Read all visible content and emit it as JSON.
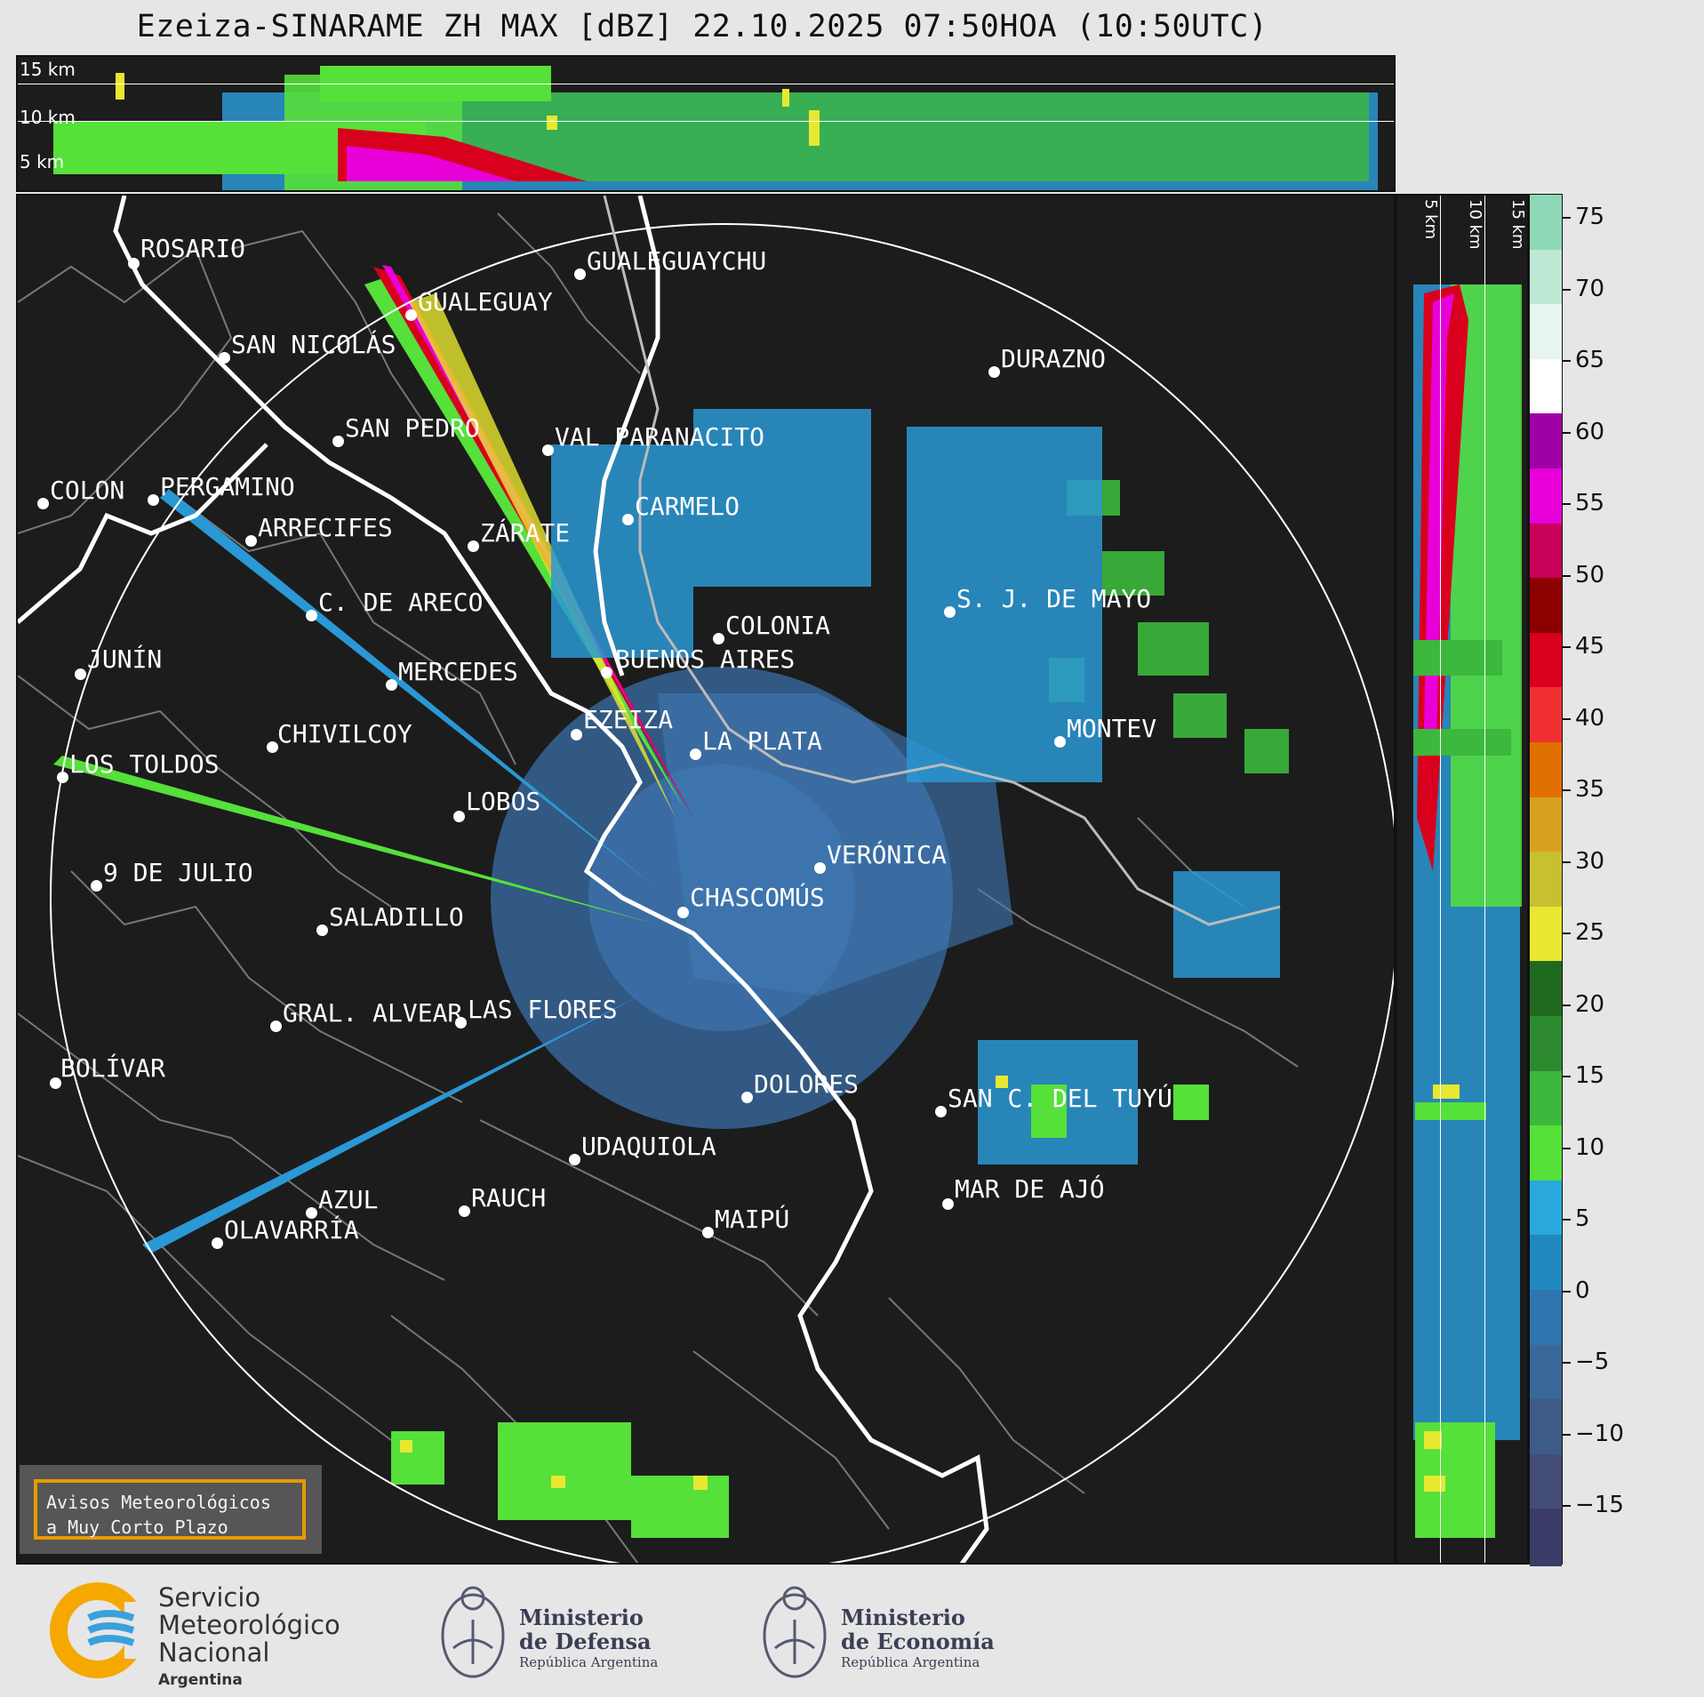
{
  "title": "Ezeiza-SINARAME ZH MAX [dBZ] 22.10.2025 07:50HOA (10:50UTC)",
  "top_panel": {
    "altitude_labels": [
      "15 km",
      "10 km",
      "5 km"
    ]
  },
  "side_panel": {
    "altitude_labels": [
      "5 km",
      "10 km",
      "15 km"
    ]
  },
  "colorbar": {
    "unit": "dBZ",
    "ticks": [
      "75",
      "70",
      "65",
      "60",
      "55",
      "50",
      "45",
      "40",
      "35",
      "30",
      "25",
      "20",
      "15",
      "10",
      "5",
      "0",
      "−5",
      "−10",
      "−15"
    ],
    "colors": [
      "#8ed8b8",
      "#bde8d4",
      "#e6f6ee",
      "#ffffff",
      "#a000a8",
      "#e800d8",
      "#c8005a",
      "#8c0000",
      "#d8001c",
      "#f03030",
      "#e07000",
      "#d8a020",
      "#c8c030",
      "#e8e830",
      "#1f6a1f",
      "#2e8a2e",
      "#3cb83c",
      "#55e03a",
      "#28a8dc",
      "#2288c0",
      "#2e74ae",
      "#3a6898",
      "#3e5a86",
      "#444c78",
      "#3c3c68"
    ]
  },
  "cities": [
    {
      "name": "ROSARIO"
    },
    {
      "name": "GUALEGUAYCHU"
    },
    {
      "name": "GUALEGUAY"
    },
    {
      "name": "SAN NICOLÁS"
    },
    {
      "name": "DURAZNO"
    },
    {
      "name": "SAN PEDRO"
    },
    {
      "name": "VAL PARANACITO"
    },
    {
      "name": "COLON"
    },
    {
      "name": "PERGAMINO"
    },
    {
      "name": "CARMELO"
    },
    {
      "name": "ARRECIFES"
    },
    {
      "name": "ZÁRATE"
    },
    {
      "name": "S. J. DE MAYO"
    },
    {
      "name": "C. DE ARECO"
    },
    {
      "name": "COLONIA"
    },
    {
      "name": "JUNÍN"
    },
    {
      "name": "BUENOS AIRES"
    },
    {
      "name": "MERCEDES"
    },
    {
      "name": "EZEIZA"
    },
    {
      "name": "MONTEV"
    },
    {
      "name": "CHIVILCOY"
    },
    {
      "name": "LA PLATA"
    },
    {
      "name": "LOS TOLDOS"
    },
    {
      "name": "LOBOS"
    },
    {
      "name": "VERÓNICA"
    },
    {
      "name": "9 DE JULIO"
    },
    {
      "name": "CHASCOMÚS"
    },
    {
      "name": "SALADILLO"
    },
    {
      "name": "GRAL. ALVEAR"
    },
    {
      "name": "LAS FLORES"
    },
    {
      "name": "BOLÍVAR"
    },
    {
      "name": "DOLORES"
    },
    {
      "name": "SAN C. DEL TUYÚ"
    },
    {
      "name": "UDAQUIOLA"
    },
    {
      "name": "MAR DE AJÓ"
    },
    {
      "name": "AZUL"
    },
    {
      "name": "RAUCH"
    },
    {
      "name": "OLAVARRÍA"
    },
    {
      "name": "MAIPÚ"
    }
  ],
  "warning_box": {
    "line1": "Avisos Meteorológicos",
    "line2": "a Muy Corto Plazo"
  },
  "footer": {
    "smn": {
      "line1": "Servicio",
      "line2": "Meteorológico",
      "line3": "Nacional",
      "line4": "Argentina"
    },
    "defensa": {
      "line1": "Ministerio",
      "line2": "de Defensa",
      "line3": "República Argentina"
    },
    "economia": {
      "line1": "Ministerio",
      "line2": "de Economía",
      "line3": "República Argentina"
    }
  }
}
